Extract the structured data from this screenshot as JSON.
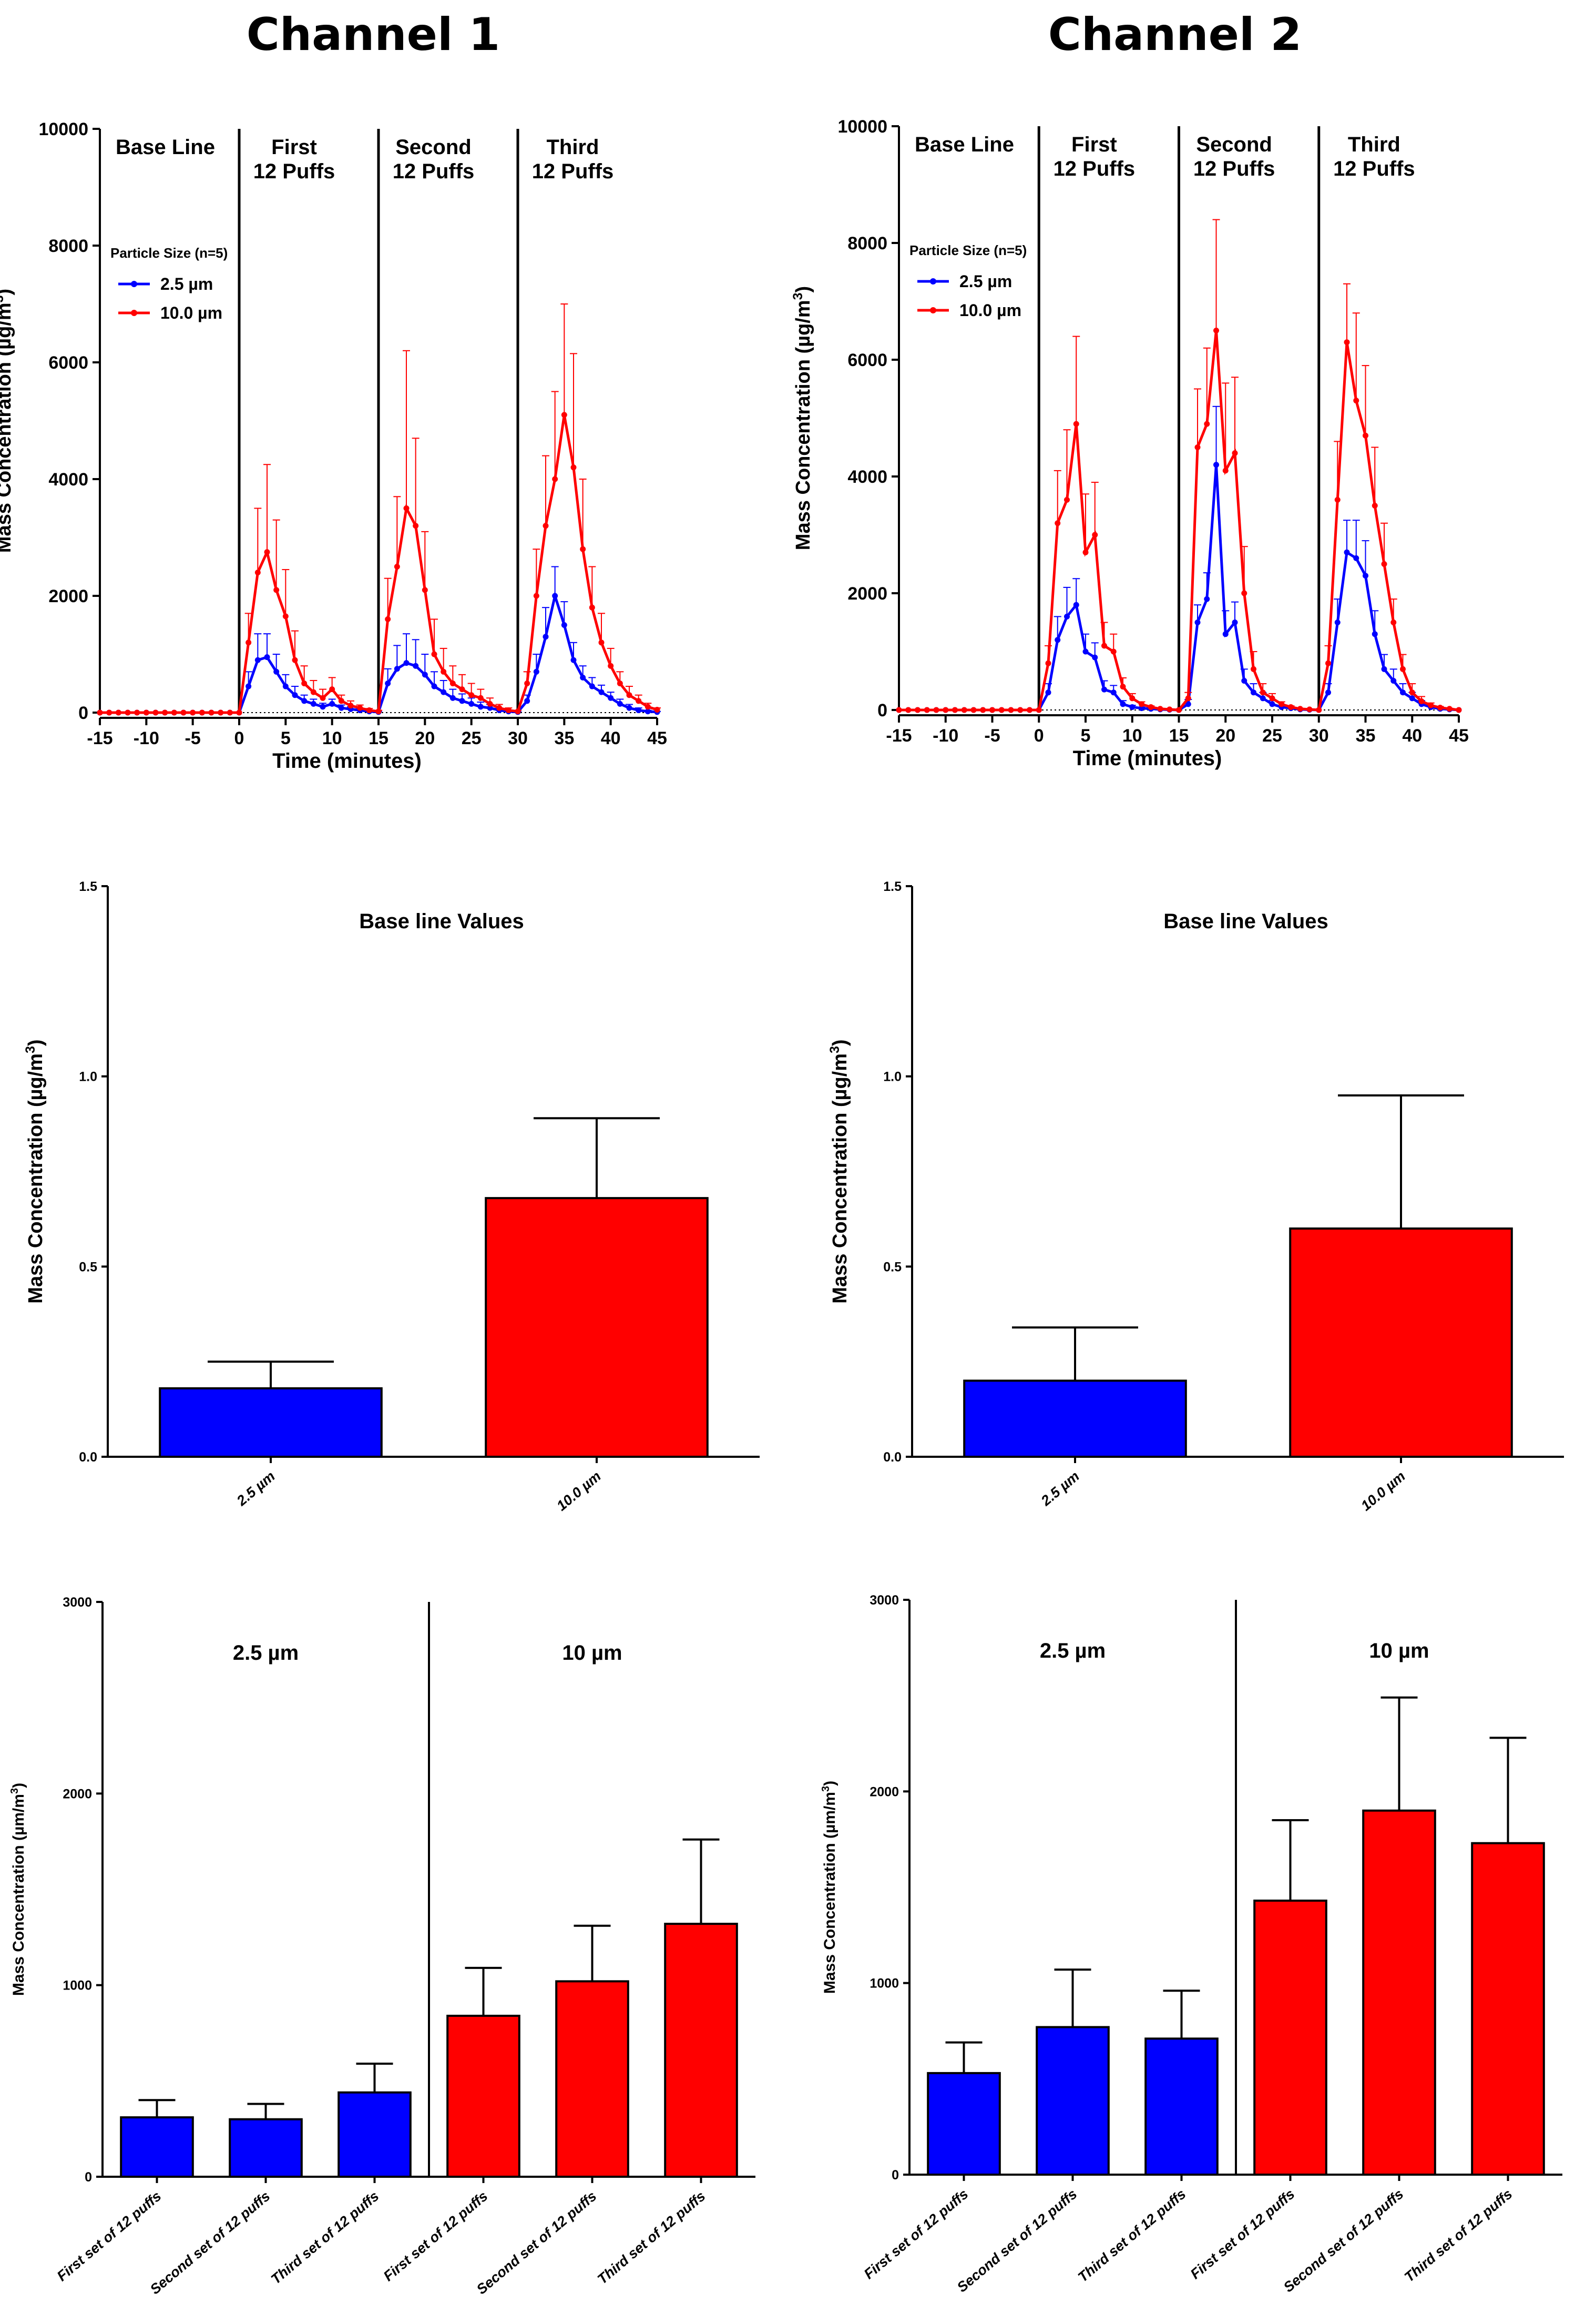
{
  "panels": {
    "channel1_title": "Channel 1",
    "channel2_title": "Channel 2"
  },
  "colors": {
    "blue": "#0000ff",
    "red": "#ff0000",
    "axis": "#000000"
  },
  "chart_data": [
    {
      "id": "ts1",
      "panel": "Channel 1",
      "type": "line",
      "title": "",
      "xlabel": "Time (minutes)",
      "ylabel": "Mass Concentration (µg/m³)",
      "ylabel_main": "Mass Concentration (",
      "ylabel_unit": "µg/m",
      "ylabel_sup": "3",
      "ylabel_close": ")",
      "xlim": [
        -15,
        45
      ],
      "ylim": [
        0,
        10000
      ],
      "xticks": [
        "-15",
        "-10",
        "-5",
        "0",
        "5",
        "10",
        "15",
        "20",
        "25",
        "30",
        "35",
        "40",
        "45"
      ],
      "yticks": [
        "0",
        "2000",
        "4000",
        "6000",
        "8000",
        "10000"
      ],
      "phases": [
        {
          "label_lines": [
            "Base Line"
          ],
          "start": -15,
          "end": 0
        },
        {
          "label_lines": [
            "First",
            "12 Puffs"
          ],
          "start": 0,
          "end": 15
        },
        {
          "label_lines": [
            "Second",
            "12 Puffs"
          ],
          "start": 15,
          "end": 30
        },
        {
          "label_lines": [
            "Third",
            "12 Puffs"
          ],
          "start": 30,
          "end": 45
        }
      ],
      "legend_title": "Particle Size (n=5)",
      "x": [
        -15,
        -14,
        -13,
        -12,
        -11,
        -10,
        -9,
        -8,
        -7,
        -6,
        -5,
        -4,
        -3,
        -2,
        -1,
        0,
        1,
        2,
        3,
        4,
        5,
        6,
        7,
        8,
        9,
        10,
        11,
        12,
        13,
        14,
        15,
        16,
        17,
        18,
        19,
        20,
        21,
        22,
        23,
        24,
        25,
        26,
        27,
        28,
        29,
        30,
        31,
        32,
        33,
        34,
        35,
        36,
        37,
        38,
        39,
        40,
        41,
        42,
        43,
        44,
        45
      ],
      "series": [
        {
          "name": "2.5 µm",
          "color": "#0000ff",
          "values": [
            0,
            0,
            0,
            0,
            0,
            0,
            0,
            0,
            0,
            0,
            0,
            0,
            0,
            0,
            0,
            0,
            450,
            900,
            950,
            700,
            450,
            300,
            200,
            150,
            100,
            150,
            80,
            60,
            40,
            20,
            10,
            500,
            750,
            850,
            800,
            650,
            450,
            350,
            250,
            200,
            150,
            100,
            80,
            40,
            20,
            10,
            200,
            700,
            1300,
            2000,
            1500,
            900,
            600,
            450,
            350,
            250,
            150,
            80,
            40,
            20,
            10
          ],
          "errors": [
            0,
            0,
            0,
            0,
            0,
            0,
            0,
            0,
            0,
            0,
            0,
            0,
            0,
            0,
            0,
            0,
            250,
            450,
            400,
            300,
            200,
            150,
            100,
            80,
            60,
            80,
            50,
            40,
            30,
            20,
            10,
            250,
            400,
            500,
            450,
            350,
            250,
            200,
            150,
            120,
            100,
            80,
            60,
            40,
            20,
            10,
            100,
            300,
            500,
            500,
            400,
            300,
            200,
            150,
            120,
            100,
            80,
            60,
            40,
            20,
            10
          ]
        },
        {
          "name": "10.0 µm",
          "color": "#ff0000",
          "values": [
            0,
            0,
            0,
            0,
            0,
            0,
            0,
            0,
            0,
            0,
            0,
            0,
            0,
            0,
            0,
            0,
            1200,
            2400,
            2750,
            2100,
            1650,
            900,
            500,
            350,
            250,
            400,
            200,
            120,
            80,
            40,
            20,
            1600,
            2500,
            3500,
            3200,
            2100,
            1000,
            700,
            500,
            400,
            300,
            250,
            150,
            80,
            40,
            20,
            500,
            2000,
            3200,
            4000,
            5100,
            4200,
            2800,
            1800,
            1200,
            800,
            500,
            300,
            200,
            100,
            50
          ],
          "errors": [
            0,
            0,
            0,
            0,
            0,
            0,
            0,
            0,
            0,
            0,
            0,
            0,
            0,
            0,
            0,
            0,
            500,
            1100,
            1500,
            1200,
            800,
            500,
            300,
            200,
            150,
            200,
            100,
            80,
            50,
            30,
            20,
            700,
            1200,
            2700,
            1500,
            1000,
            600,
            400,
            300,
            250,
            200,
            150,
            100,
            60,
            40,
            20,
            200,
            800,
            1200,
            1500,
            1900,
            1950,
            1200,
            700,
            500,
            300,
            200,
            150,
            100,
            60,
            30
          ]
        }
      ]
    },
    {
      "id": "ts2",
      "panel": "Channel 2",
      "type": "line",
      "title": "",
      "xlabel": "Time (minutes)",
      "ylabel": "Mass Concentration (µg/m³)",
      "ylabel_main": "Mass Concentration (",
      "ylabel_unit": "µg/m",
      "ylabel_sup": "3",
      "ylabel_close": ")",
      "xlim": [
        -15,
        45
      ],
      "ylim": [
        0,
        10000
      ],
      "xticks": [
        "-15",
        "-10",
        "-5",
        "0",
        "5",
        "10",
        "15",
        "20",
        "25",
        "30",
        "35",
        "40",
        "45"
      ],
      "yticks": [
        "0",
        "2000",
        "4000",
        "6000",
        "8000",
        "10000"
      ],
      "phases": [
        {
          "label_lines": [
            "Base Line"
          ],
          "start": -15,
          "end": 0
        },
        {
          "label_lines": [
            "First",
            "12 Puffs"
          ],
          "start": 0,
          "end": 15
        },
        {
          "label_lines": [
            "Second",
            "12 Puffs"
          ],
          "start": 15,
          "end": 30
        },
        {
          "label_lines": [
            "Third",
            "12 Puffs"
          ],
          "start": 30,
          "end": 45
        }
      ],
      "legend_title": "Particle Size (n=5)",
      "x": [
        -15,
        -14,
        -13,
        -12,
        -11,
        -10,
        -9,
        -8,
        -7,
        -6,
        -5,
        -4,
        -3,
        -2,
        -1,
        0,
        1,
        2,
        3,
        4,
        5,
        6,
        7,
        8,
        9,
        10,
        11,
        12,
        13,
        14,
        15,
        16,
        17,
        18,
        19,
        20,
        21,
        22,
        23,
        24,
        25,
        26,
        27,
        28,
        29,
        30,
        31,
        32,
        33,
        34,
        35,
        36,
        37,
        38,
        39,
        40,
        41,
        42,
        43,
        44,
        45
      ],
      "series": [
        {
          "name": "2.5 µm",
          "color": "#0000ff",
          "values": [
            0,
            0,
            0,
            0,
            0,
            0,
            0,
            0,
            0,
            0,
            0,
            0,
            0,
            0,
            0,
            0,
            300,
            1200,
            1600,
            1800,
            1000,
            900,
            350,
            300,
            100,
            50,
            30,
            20,
            10,
            5,
            0,
            100,
            1500,
            1900,
            4200,
            1300,
            1500,
            500,
            300,
            200,
            100,
            50,
            30,
            10,
            5,
            0,
            300,
            1500,
            2700,
            2600,
            2300,
            1300,
            700,
            500,
            300,
            200,
            100,
            50,
            20,
            10,
            0
          ],
          "errors": [
            0,
            0,
            0,
            0,
            0,
            0,
            0,
            0,
            0,
            0,
            0,
            0,
            0,
            0,
            0,
            0,
            150,
            400,
            500,
            450,
            300,
            250,
            150,
            120,
            60,
            30,
            20,
            10,
            8,
            5,
            0,
            80,
            300,
            450,
            1000,
            400,
            350,
            200,
            150,
            100,
            60,
            30,
            20,
            10,
            5,
            0,
            150,
            400,
            550,
            650,
            600,
            400,
            250,
            200,
            150,
            100,
            60,
            30,
            15,
            8,
            0
          ],
          "hidden_offset": 0
        },
        {
          "name": "10.0 µm",
          "color": "#ff0000",
          "values": [
            0,
            0,
            0,
            0,
            0,
            0,
            0,
            0,
            0,
            0,
            0,
            0,
            0,
            0,
            0,
            0,
            800,
            3200,
            3600,
            4900,
            2700,
            3000,
            1100,
            1000,
            400,
            200,
            100,
            50,
            20,
            10,
            0,
            200,
            4500,
            4900,
            6500,
            4100,
            4400,
            2000,
            700,
            300,
            200,
            100,
            50,
            20,
            10,
            0,
            800,
            3600,
            6300,
            5300,
            4700,
            3500,
            2500,
            1500,
            700,
            300,
            150,
            80,
            40,
            20,
            0
          ],
          "errors": [
            0,
            0,
            0,
            0,
            0,
            0,
            0,
            0,
            0,
            0,
            0,
            0,
            0,
            0,
            0,
            0,
            300,
            900,
            1200,
            1500,
            1000,
            900,
            400,
            300,
            150,
            80,
            40,
            20,
            10,
            5,
            0,
            100,
            1000,
            1300,
            1900,
            1500,
            1300,
            800,
            300,
            150,
            80,
            40,
            20,
            10,
            5,
            0,
            300,
            1000,
            1000,
            1500,
            1200,
            1000,
            700,
            400,
            250,
            150,
            80,
            40,
            20,
            10,
            0
          ]
        }
      ]
    },
    {
      "id": "bl1",
      "panel": "Channel 1",
      "type": "bar",
      "title": "Base line Values",
      "xlabel": "",
      "ylabel": "Mass Concentration (µg/m³)",
      "ylabel_main": "Mass Concentration (",
      "ylabel_unit": "µg/m",
      "ylabel_sup": "3",
      "ylabel_close": ")",
      "ylim": [
        0,
        1.5
      ],
      "yticks": [
        "0.0",
        "0.5",
        "1.0",
        "1.5"
      ],
      "categories": [
        "2.5 µm",
        "10.0 µm"
      ],
      "values": [
        0.18,
        0.68
      ],
      "errors": [
        0.07,
        0.21
      ],
      "bar_colors": [
        "#0000ff",
        "#ff0000"
      ]
    },
    {
      "id": "bl2",
      "panel": "Channel 2",
      "type": "bar",
      "title": "Base line Values",
      "xlabel": "",
      "ylabel": "Mass Concentration (µg/m³)",
      "ylabel_main": "Mass Concentration (",
      "ylabel_unit": "µg/m",
      "ylabel_sup": "3",
      "ylabel_close": ")",
      "ylim": [
        0,
        1.5
      ],
      "yticks": [
        "0.0",
        "0.5",
        "1.0",
        "1.5"
      ],
      "categories": [
        "2.5 µm",
        "10.0 µm"
      ],
      "values": [
        0.2,
        0.6
      ],
      "errors": [
        0.14,
        0.35
      ],
      "bar_colors": [
        "#0000ff",
        "#ff0000"
      ]
    },
    {
      "id": "pf1",
      "panel": "Channel 1",
      "type": "bar",
      "title": "",
      "xlabel": "",
      "ylabel": "Mass Concentration (µm/m³)",
      "ylabel_main": "Mass Concentration (",
      "ylabel_unit": "µm/m",
      "ylabel_sup": "3",
      "ylabel_close": ")",
      "ylim": [
        0,
        3000
      ],
      "yticks": [
        "0",
        "1000",
        "2000",
        "3000"
      ],
      "group_labels": [
        "2.5 µm",
        "10 µm"
      ],
      "categories": [
        "First set of 12 puffs",
        "Second set of 12 puffs",
        "Third set of 12 puffs",
        "First set of 12 puffs",
        "Second set of 12 puffs",
        "Third set of 12 puffs"
      ],
      "values": [
        310,
        300,
        440,
        840,
        1020,
        1320
      ],
      "errors": [
        90,
        80,
        150,
        250,
        290,
        440
      ],
      "bar_colors": [
        "#0000ff",
        "#0000ff",
        "#0000ff",
        "#ff0000",
        "#ff0000",
        "#ff0000"
      ]
    },
    {
      "id": "pf2",
      "panel": "Channel 2",
      "type": "bar",
      "title": "",
      "xlabel": "",
      "ylabel": "Mass Concentration (µm/m³)",
      "ylabel_main": "Mass Concentration (",
      "ylabel_unit": "µm/m",
      "ylabel_sup": "3",
      "ylabel_close": ")",
      "ylim": [
        0,
        3000
      ],
      "yticks": [
        "0",
        "1000",
        "2000",
        "3000"
      ],
      "group_labels": [
        "2.5 µm",
        "10 µm"
      ],
      "categories": [
        "First set of 12 puffs",
        "Second set of 12 puffs",
        "Third set of 12 puffs",
        "First set of 12 puffs",
        "Second set of 12 puffs",
        "Third set of 12 puffs"
      ],
      "values": [
        530,
        770,
        710,
        1430,
        1900,
        1730
      ],
      "errors": [
        160,
        300,
        250,
        420,
        590,
        550
      ],
      "bar_colors": [
        "#0000ff",
        "#0000ff",
        "#0000ff",
        "#ff0000",
        "#ff0000",
        "#ff0000"
      ]
    }
  ]
}
